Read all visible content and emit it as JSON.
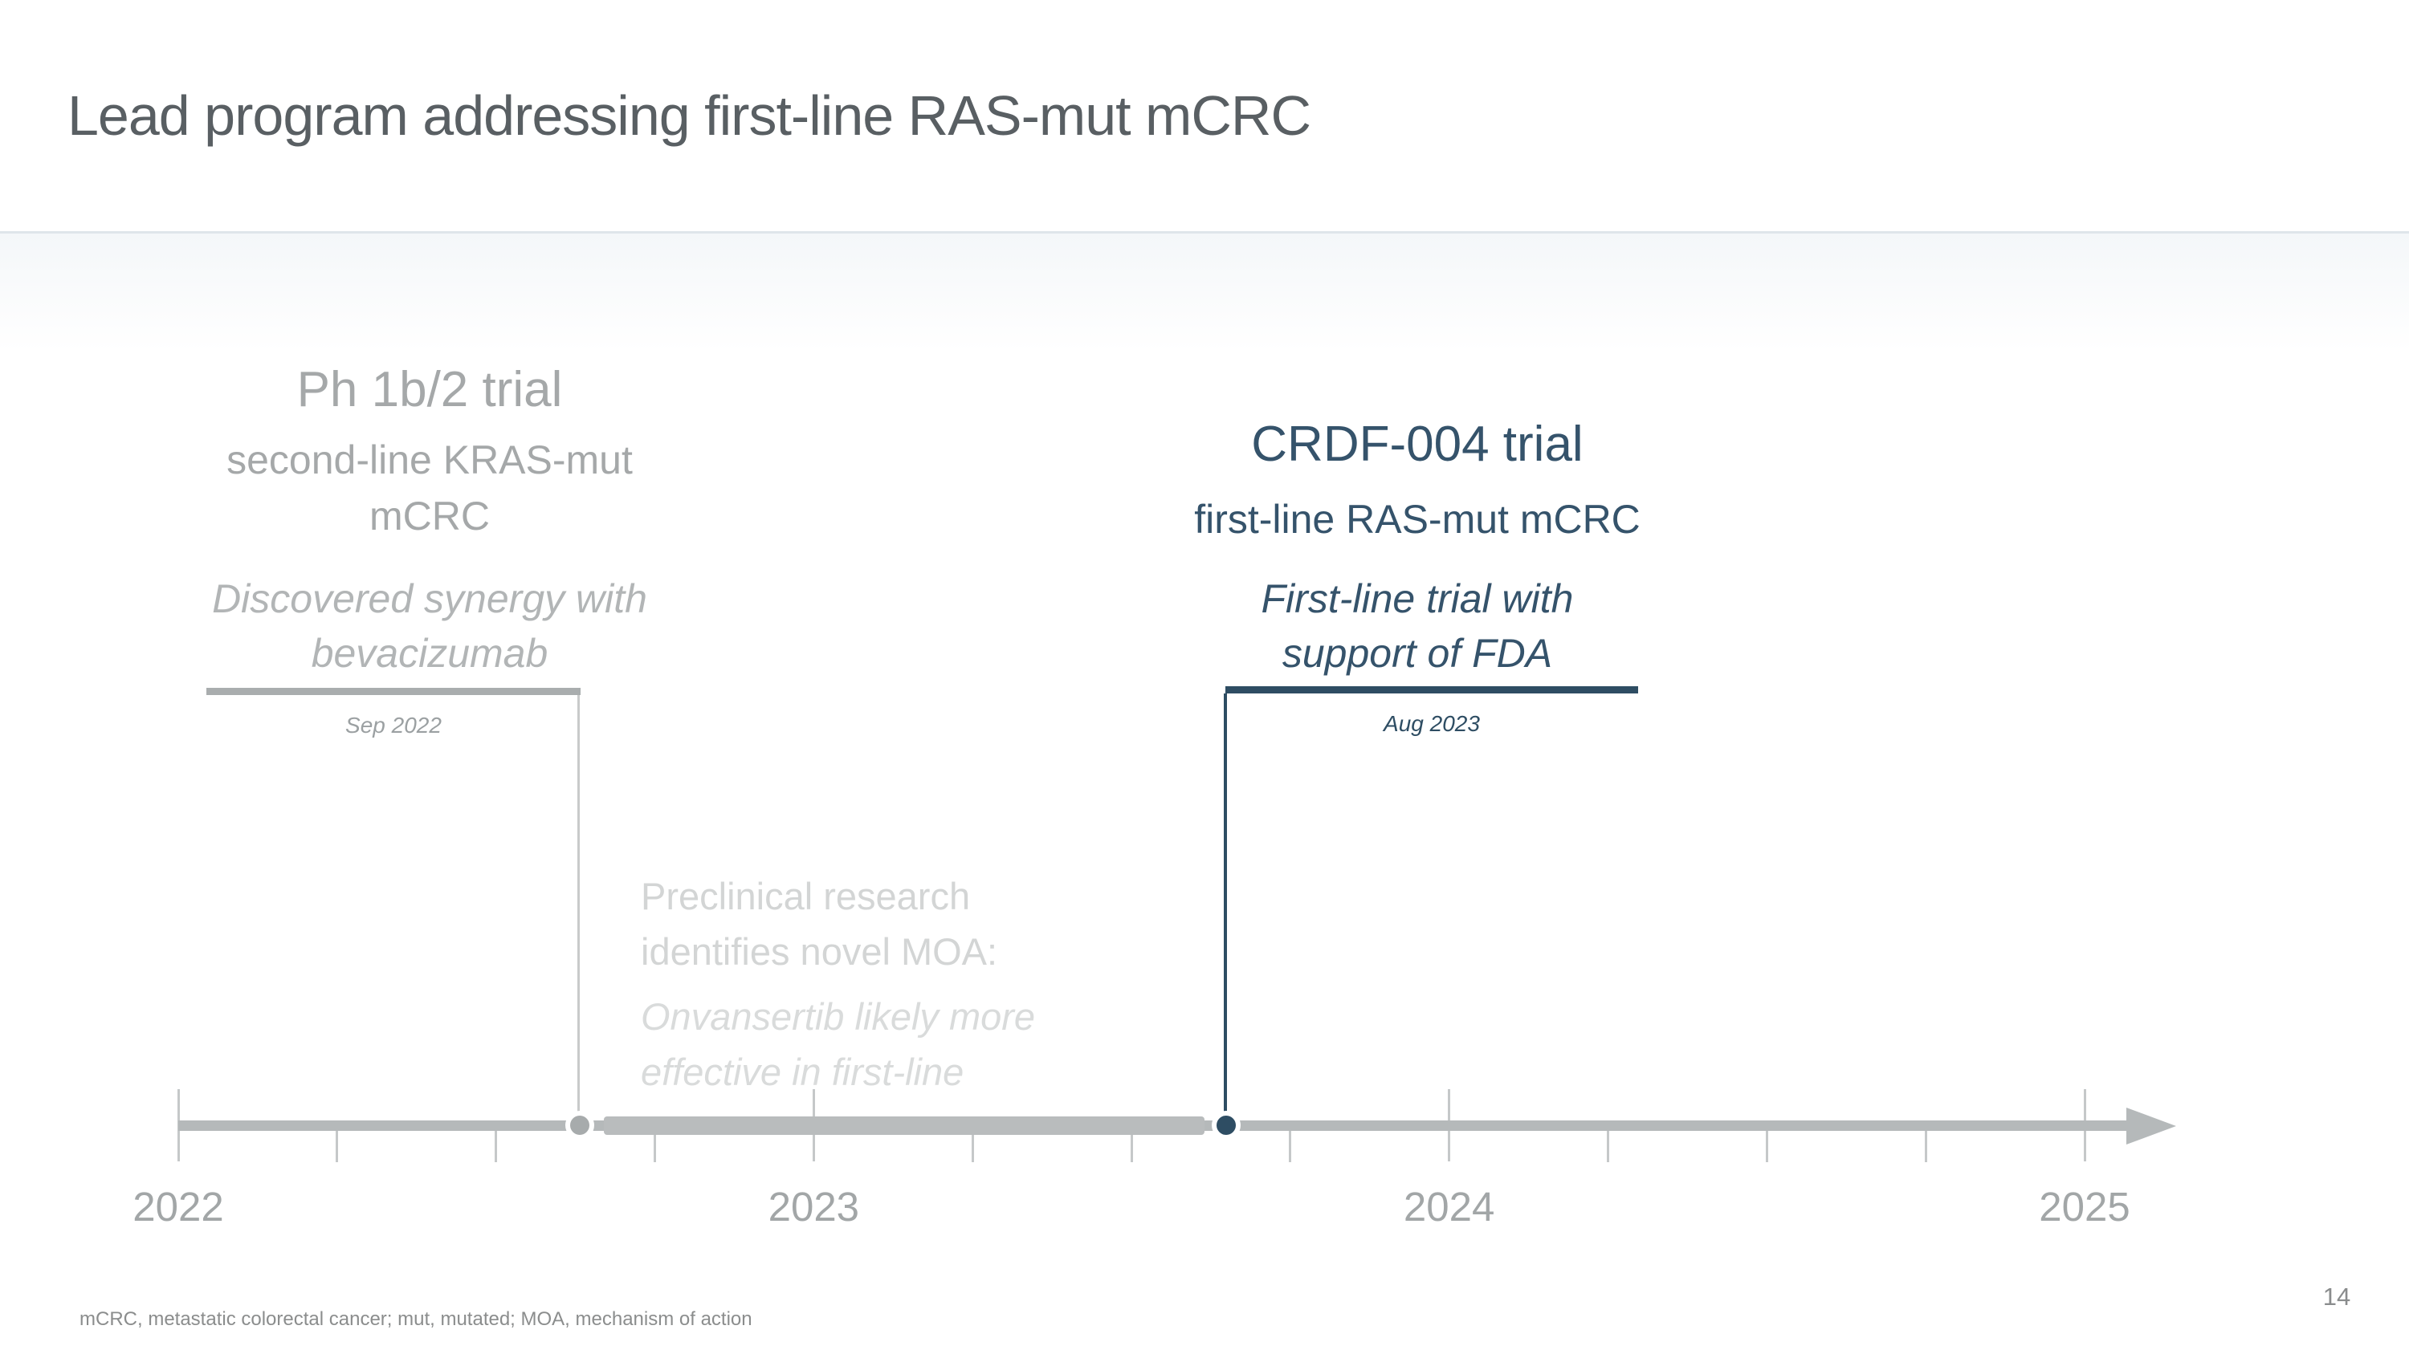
{
  "slide": {
    "title": "Lead program addressing first-line RAS-mut mCRC",
    "footnote": "mCRC, metastatic colorectal cancer; mut, mutated; MOA, mechanism of action",
    "page_number": "14"
  },
  "left_event": {
    "title": "Ph 1b/2 trial",
    "subtitle_lines": [
      "second-line KRAS-mut",
      "mCRC"
    ],
    "note_lines": [
      "Discovered synergy with",
      "bevacizumab"
    ],
    "date": "Sep 2022"
  },
  "right_event": {
    "title": "CRDF-004 trial",
    "subtitle_lines": [
      "first-line RAS-mut mCRC"
    ],
    "note_lines": [
      "First-line trial with",
      "support of FDA"
    ],
    "date": "Aug 2023"
  },
  "preclinical_note": {
    "lines": [
      "Preclinical research",
      "identifies novel MOA:"
    ],
    "italic_lines": [
      "Onvansertib likely more",
      "effective in first-line"
    ]
  },
  "timeline": {
    "years": [
      "2022",
      "2023",
      "2024",
      "2025"
    ],
    "minor_ticks_per_year": 4,
    "markers": [
      {
        "date": "Sep 2022",
        "color": "#a7abac"
      },
      {
        "date": "Aug 2023",
        "color": "#2e4d63"
      }
    ]
  },
  "colors": {
    "title_text": "#595f63",
    "muted_gray_text": "#a5a8a9",
    "light_gray_text": "#d3d5d5",
    "navy": "#35536b",
    "navy_dark": "#2e4d63",
    "timeline_gray": "#b5b9ba",
    "band_line": "#dfe5ea"
  }
}
